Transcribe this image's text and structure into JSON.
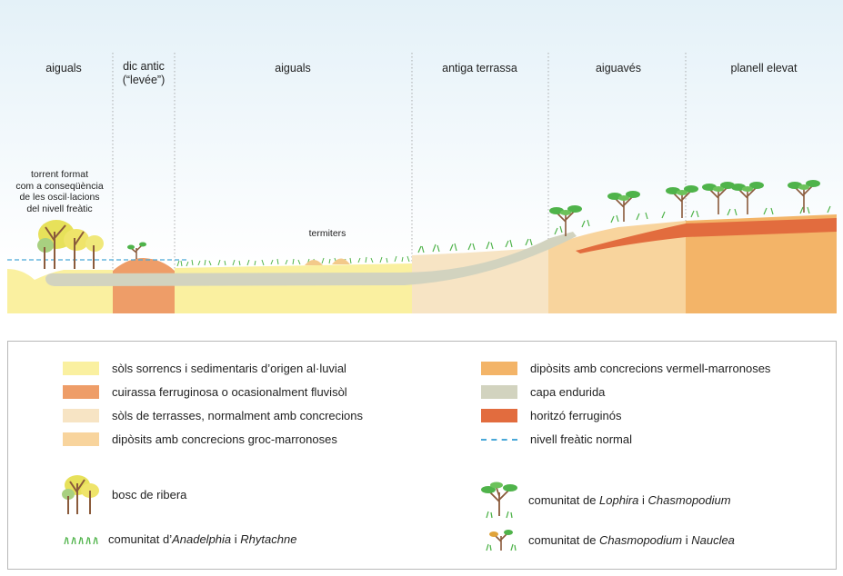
{
  "zones": [
    {
      "id": "aiguals-1",
      "label": "aiguals"
    },
    {
      "id": "dic-antic",
      "label": "dic antic\n(“levée”)"
    },
    {
      "id": "aiguals-2",
      "label": "aiguals"
    },
    {
      "id": "antiga-terrassa",
      "label": "antiga terrassa"
    },
    {
      "id": "aiguaves",
      "label": "aiguavés"
    },
    {
      "id": "planell-elevat",
      "label": "planell elevat"
    }
  ],
  "annotations": {
    "torrent": "torrent format\ncom a conseqüència\nde les oscil·lacions\ndel nivell freàtic",
    "termiters": "termiters"
  },
  "legend": {
    "swatches": [
      {
        "id": "sols-sorrencs",
        "label": "sòls sorrencs i sedimentaris d’origen al·luvial",
        "color": "#faf0a0"
      },
      {
        "id": "cuirassa",
        "label": "cuirassa ferruginosa o ocasionalment fluvisòl",
        "color": "#ee9d68"
      },
      {
        "id": "sols-terrasses",
        "label": "sòls de terrasses, normalment amb concrecions",
        "color": "#f7e4c4"
      },
      {
        "id": "diposits-groc",
        "label": "dipòsits amb concrecions groc-marronoses",
        "color": "#f8d49d"
      },
      {
        "id": "diposits-vermell",
        "label": "dipòsits amb concrecions vermell-marronoses",
        "color": "#f3b468"
      },
      {
        "id": "capa-endurida",
        "label": "capa endurida",
        "color": "#d2d3bf"
      },
      {
        "id": "horitzo",
        "label": "horitzó ferruginós",
        "color": "#e26c3e"
      },
      {
        "id": "nivell-freatic",
        "label": "nivell freàtic normal",
        "color": "#4aa8d8"
      }
    ],
    "communities": {
      "bosc": "bosc de ribera",
      "anadelphia_pre": "comunitat d’",
      "anadelphia_a": "Anadelphia",
      "anadelphia_mid": " i ",
      "anadelphia_b": "Rhytachne",
      "lophira_pre": "comunitat de ",
      "lophira_a": "Lophira",
      "lophira_mid": " i ",
      "lophira_b": "Chasmopodium",
      "nauclea_pre": "comunitat de ",
      "nauclea_a": "Chasmopodium",
      "nauclea_mid": " i ",
      "nauclea_b": "Nauclea"
    }
  },
  "colors": {
    "sky": "#eef6fb",
    "grass": "#4fb34a",
    "trunk": "#8a5a3b"
  }
}
